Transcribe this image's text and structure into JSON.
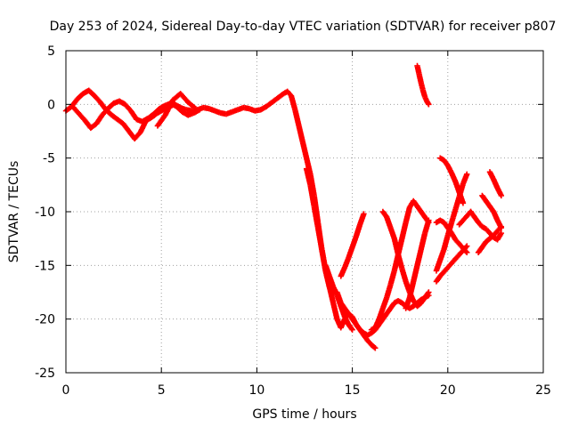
{
  "chart_data": {
    "type": "scatter",
    "title": "Day 253 of 2024, Sidereal Day-to-day VTEC variation (SDTVAR) for receiver p807",
    "xlabel": "GPS time / hours",
    "ylabel": "SDTVAR / TECUs",
    "xlim": [
      0,
      25
    ],
    "ylim": [
      -25,
      5
    ],
    "xticks": [
      0,
      5,
      10,
      15,
      20,
      25
    ],
    "yticks": [
      -25,
      -20,
      -15,
      -10,
      -5,
      0,
      5
    ],
    "grid": true,
    "marker": "plus",
    "color": "#ff0000",
    "series": [
      {
        "x": [
          0.0,
          0.3,
          0.6,
          0.9,
          1.2,
          1.5,
          1.8,
          2.1,
          2.4,
          2.7,
          3.0,
          3.3,
          3.6,
          3.9,
          4.2,
          4.5,
          4.8,
          5.1,
          5.4,
          5.7,
          6.0,
          6.3,
          6.6,
          6.9,
          7.2,
          7.5,
          7.8,
          8.1,
          8.4,
          8.7,
          9.0,
          9.3,
          9.6,
          9.9,
          10.2,
          10.5,
          10.8,
          11.1,
          11.4,
          11.6,
          11.8,
          12.0,
          12.2,
          12.4,
          12.6,
          12.8,
          13.0,
          13.2,
          13.4,
          13.6,
          13.8,
          14.0
        ],
        "y": [
          -0.6,
          -0.2,
          0.5,
          1.0,
          1.3,
          0.8,
          0.2,
          -0.5,
          -1.0,
          -1.4,
          -1.8,
          -2.5,
          -3.2,
          -2.6,
          -1.5,
          -1.2,
          -0.8,
          -0.5,
          -0.2,
          0.0,
          -0.3,
          -0.5,
          -0.6,
          -0.5,
          -0.3,
          -0.4,
          -0.6,
          -0.8,
          -0.9,
          -0.7,
          -0.5,
          -0.3,
          -0.4,
          -0.6,
          -0.5,
          -0.2,
          0.2,
          0.6,
          1.0,
          1.2,
          0.8,
          -0.5,
          -2.0,
          -3.5,
          -5.0,
          -6.5,
          -8.5,
          -11.0,
          -13.5,
          -15.5,
          -17.0,
          -17.5
        ]
      },
      {
        "x": [
          0.4,
          0.7,
          1.0,
          1.3,
          1.6,
          1.9,
          2.2,
          2.5,
          2.8,
          3.1,
          3.4,
          3.7,
          4.0,
          4.3,
          4.6,
          4.9,
          5.2,
          5.5,
          5.8,
          6.1,
          6.4,
          6.7,
          7.0
        ],
        "y": [
          -0.3,
          -0.9,
          -1.5,
          -2.2,
          -1.8,
          -1.0,
          -0.4,
          0.1,
          0.3,
          0.0,
          -0.6,
          -1.4,
          -1.6,
          -1.3,
          -0.9,
          -0.4,
          -0.1,
          0.1,
          -0.2,
          -0.7,
          -1.0,
          -0.8,
          -0.5
        ]
      },
      {
        "x": [
          4.8,
          5.2,
          5.6,
          6.0,
          6.4,
          6.8
        ],
        "y": [
          -2.0,
          -1.0,
          0.4,
          1.0,
          0.2,
          -0.4
        ]
      },
      {
        "x": [
          12.6,
          12.8,
          13.0,
          13.2,
          13.4,
          13.6,
          13.8,
          14.0,
          14.2,
          14.4,
          14.6,
          14.8,
          15.0,
          15.2,
          15.4,
          15.6,
          15.8,
          16.0,
          16.2
        ],
        "y": [
          -6.0,
          -7.5,
          -9.5,
          -11.5,
          -13.5,
          -15.5,
          -17.0,
          -18.5,
          -20.0,
          -20.8,
          -20.0,
          -19.5,
          -19.8,
          -20.5,
          -21.0,
          -21.5,
          -22.0,
          -22.4,
          -22.7
        ]
      },
      {
        "x": [
          14.2,
          14.4,
          14.6,
          14.8,
          15.0,
          15.2,
          15.4,
          15.6,
          15.8,
          16.0,
          16.2,
          16.4,
          16.6,
          16.8,
          17.0,
          17.2,
          17.4,
          17.6,
          17.8,
          18.0,
          18.2,
          18.4,
          18.6,
          18.8,
          19.0
        ],
        "y": [
          -17.5,
          -18.5,
          -19.0,
          -19.5,
          -20.0,
          -20.5,
          -21.0,
          -21.3,
          -21.5,
          -21.3,
          -21.0,
          -20.5,
          -20.0,
          -19.5,
          -19.0,
          -18.5,
          -18.3,
          -18.5,
          -18.8,
          -19.0,
          -18.8,
          -18.5,
          -18.2,
          -18.0,
          -17.8
        ]
      },
      {
        "x": [
          13.6,
          13.8,
          14.0,
          14.2,
          14.4,
          14.6,
          14.8,
          15.0
        ],
        "y": [
          -15.0,
          -16.0,
          -17.0,
          -17.8,
          -18.8,
          -19.8,
          -20.5,
          -21.0
        ]
      },
      {
        "x": [
          14.4,
          14.6,
          14.8,
          15.0,
          15.2,
          15.4,
          15.6
        ],
        "y": [
          -16.0,
          -15.2,
          -14.3,
          -13.3,
          -12.3,
          -11.2,
          -10.2
        ]
      },
      {
        "x": [
          16.0,
          16.2,
          16.4,
          16.6,
          16.8,
          17.0,
          17.2,
          17.4,
          17.6,
          17.8,
          18.0,
          18.2,
          18.4,
          18.6,
          18.8,
          19.0
        ],
        "y": [
          -21.0,
          -20.8,
          -20.0,
          -19.0,
          -18.0,
          -16.8,
          -15.5,
          -14.0,
          -12.5,
          -11.0,
          -9.6,
          -9.0,
          -9.5,
          -10.0,
          -10.5,
          -11.0
        ]
      },
      {
        "x": [
          16.6,
          16.8,
          17.0,
          17.2,
          17.4,
          17.6,
          17.8,
          18.0,
          18.2,
          18.4,
          18.6,
          18.8,
          19.0
        ],
        "y": [
          -10.0,
          -10.5,
          -11.5,
          -12.5,
          -14.0,
          -15.3,
          -16.5,
          -17.5,
          -18.3,
          -18.8,
          -18.5,
          -18.0,
          -17.5
        ]
      },
      {
        "x": [
          17.8,
          18.0,
          18.2,
          18.4,
          18.6,
          18.8,
          19.0
        ],
        "y": [
          -19.0,
          -18.0,
          -16.5,
          -15.0,
          -13.5,
          -12.0,
          -10.8
        ]
      },
      {
        "x": [
          18.4,
          18.5,
          18.6,
          18.7,
          18.8,
          18.9,
          19.0
        ],
        "y": [
          3.6,
          2.8,
          2.0,
          1.3,
          0.7,
          0.3,
          0.0
        ]
      },
      {
        "x": [
          19.6,
          19.8,
          20.0,
          20.2,
          20.4,
          20.6,
          20.8
        ],
        "y": [
          -5.0,
          -5.2,
          -5.7,
          -6.4,
          -7.2,
          -8.2,
          -9.2
        ]
      },
      {
        "x": [
          19.4,
          19.6,
          19.8,
          20.0,
          20.2,
          20.4,
          20.6,
          20.8,
          21.0
        ],
        "y": [
          -15.5,
          -14.5,
          -13.5,
          -12.2,
          -11.0,
          -9.8,
          -8.6,
          -7.4,
          -6.5
        ]
      },
      {
        "x": [
          19.4,
          19.6,
          19.8,
          20.0,
          20.2,
          20.4,
          20.6,
          20.8,
          21.0
        ],
        "y": [
          -11.0,
          -10.8,
          -11.0,
          -11.5,
          -12.0,
          -12.6,
          -13.0,
          -13.4,
          -13.8
        ]
      },
      {
        "x": [
          19.4,
          19.6,
          19.8,
          20.0,
          20.2,
          20.4,
          20.6,
          20.8,
          21.0
        ],
        "y": [
          -16.5,
          -16.0,
          -15.6,
          -15.2,
          -14.8,
          -14.4,
          -14.0,
          -13.6,
          -13.2
        ]
      },
      {
        "x": [
          20.6,
          20.8,
          21.0,
          21.2
        ],
        "y": [
          -11.2,
          -10.8,
          -10.4,
          -10.0
        ]
      },
      {
        "x": [
          21.2,
          21.4,
          21.6,
          21.8,
          22.0,
          22.2,
          22.4,
          22.6,
          22.8
        ],
        "y": [
          -10.0,
          -10.5,
          -11.0,
          -11.4,
          -11.6,
          -12.0,
          -12.4,
          -12.6,
          -12.0
        ]
      },
      {
        "x": [
          21.6,
          21.8,
          22.0,
          22.2,
          22.4,
          22.6,
          22.8
        ],
        "y": [
          -13.8,
          -13.3,
          -12.8,
          -12.5,
          -12.2,
          -11.8,
          -11.4
        ]
      },
      {
        "x": [
          21.8,
          22.0,
          22.2,
          22.4,
          22.6,
          22.8
        ],
        "y": [
          -8.5,
          -9.0,
          -9.5,
          -10.0,
          -10.8,
          -11.5
        ]
      },
      {
        "x": [
          22.2,
          22.4,
          22.6,
          22.8
        ],
        "y": [
          -6.3,
          -7.0,
          -7.8,
          -8.5
        ]
      }
    ]
  }
}
